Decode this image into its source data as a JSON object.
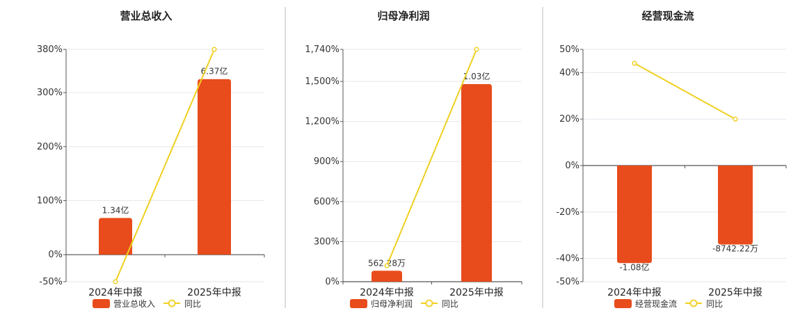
{
  "colors": {
    "bar": "#E84B1C",
    "line": "#F0D020",
    "grid": "#E6E6EE",
    "axis": "#555555",
    "separator": "#BBBBBB"
  },
  "chart_data": [
    {
      "type": "bar",
      "title": "营业总收入",
      "categories": [
        "2024年中报",
        "2025年中报"
      ],
      "series": [
        {
          "name": "营业总收入",
          "type": "bar",
          "values": [
            68,
            325
          ],
          "labels": [
            "1.34亿",
            "6.37亿"
          ]
        },
        {
          "name": "同比",
          "type": "line",
          "values": [
            -50,
            380
          ]
        }
      ],
      "ylim": [
        -50,
        380
      ],
      "yticks": [
        -50,
        0,
        100,
        200,
        300,
        380
      ],
      "yticklabels": [
        "-50%",
        "0%",
        "100%",
        "200%",
        "300%",
        "380%"
      ],
      "grid": true,
      "legend": "bottom"
    },
    {
      "type": "bar",
      "title": "归母净利润",
      "categories": [
        "2024年中报",
        "2025年中报"
      ],
      "series": [
        {
          "name": "归母净利润",
          "type": "bar",
          "values": [
            82,
            1480
          ],
          "labels": [
            "562.28万",
            "1.03亿"
          ]
        },
        {
          "name": "同比",
          "type": "line",
          "values": [
            120,
            1740
          ]
        }
      ],
      "ylim": [
        0,
        1740
      ],
      "yticks": [
        0,
        300,
        600,
        900,
        1200,
        1500,
        1740
      ],
      "yticklabels": [
        "0%",
        "300%",
        "600%",
        "900%",
        "1,200%",
        "1,500%",
        "1,740%"
      ],
      "grid": true,
      "legend": "bottom"
    },
    {
      "type": "bar",
      "title": "经营现金流",
      "categories": [
        "2024年中报",
        "2025年中报"
      ],
      "series": [
        {
          "name": "经营现金流",
          "type": "bar",
          "values": [
            -42,
            -34
          ],
          "labels": [
            "-1.08亿",
            "-8742.22万"
          ]
        },
        {
          "name": "同比",
          "type": "line",
          "values": [
            44,
            20
          ]
        }
      ],
      "ylim": [
        -50,
        50
      ],
      "yticks": [
        -50,
        -40,
        -20,
        0,
        20,
        40,
        50
      ],
      "yticklabels": [
        "-50%",
        "-40%",
        "-20%",
        "0%",
        "20%",
        "40%",
        "50%"
      ],
      "grid": true,
      "legend": "bottom"
    }
  ]
}
